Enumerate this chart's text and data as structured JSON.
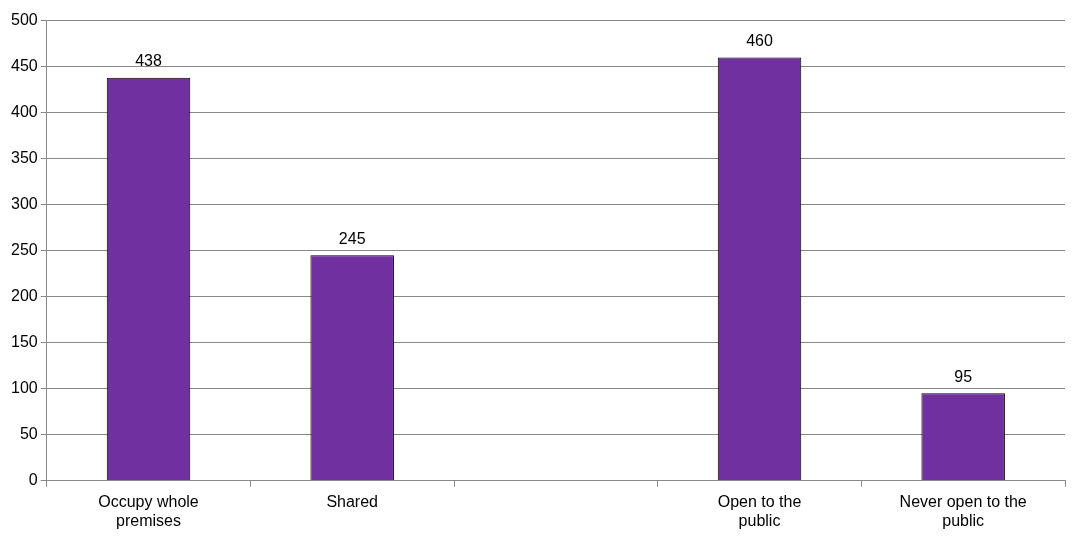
{
  "chart_data": {
    "type": "bar",
    "categories": [
      "Occupy whole premises",
      "Shared",
      null,
      "Open to the public",
      "Never open to the public"
    ],
    "values": [
      438,
      245,
      null,
      460,
      95
    ],
    "color": "#7030a0",
    "ylim": [
      0,
      500
    ],
    "yticks": [
      0,
      50,
      100,
      150,
      200,
      250,
      300,
      350,
      400,
      450,
      500
    ],
    "grid": "y",
    "data_labels": true,
    "legend": false
  }
}
